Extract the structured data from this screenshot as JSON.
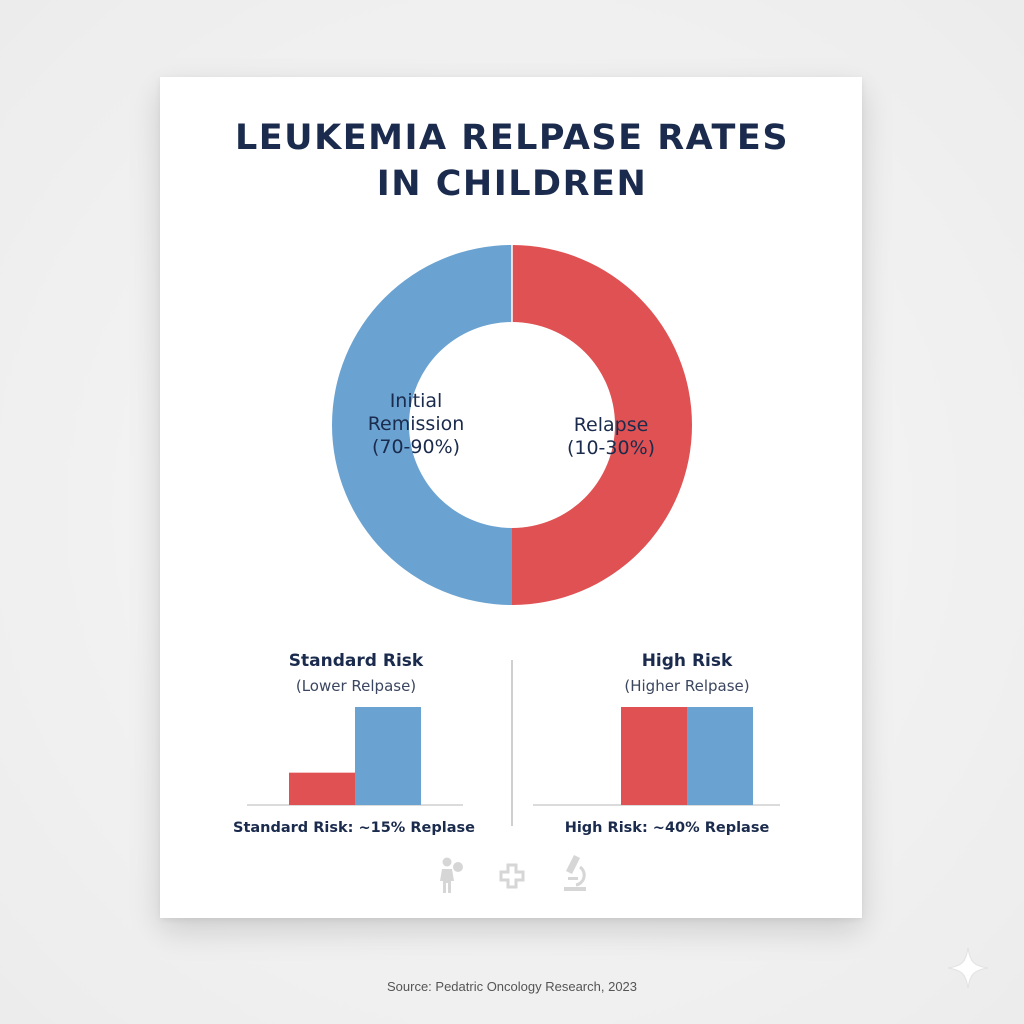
{
  "title_line1": "LEUKEMIA RELPASE RATES",
  "title_line2": "IN CHILDREN",
  "colors": {
    "remission": "#6aa2d1",
    "relapse": "#df5152",
    "text": "#1b2b4d"
  },
  "chart_data": [
    {
      "type": "pie",
      "donut": true,
      "slices": [
        {
          "label_line1": "Initial",
          "label_line2": "Remission",
          "label_line3": "(70-90%)",
          "value": 50,
          "color": "#6aa2d1"
        },
        {
          "label_line1": "Relapse",
          "label_line2": "(10-30%)",
          "value": 50,
          "color": "#df5152"
        }
      ]
    },
    {
      "type": "bar",
      "title": "Standard Risk",
      "subtitle": "(Lower Relpase)",
      "caption": "Standard Risk: ~15% Replase",
      "values": [
        33,
        100
      ],
      "colors": [
        "#df5152",
        "#6aa2d1"
      ],
      "ylim": [
        0,
        100
      ]
    },
    {
      "type": "bar",
      "title": "High Risk",
      "subtitle": "(Higher Relpase)",
      "caption": "High Risk: ~40% Replase",
      "values": [
        100,
        100
      ],
      "colors": [
        "#df5152",
        "#6aa2d1"
      ],
      "ylim": [
        0,
        100
      ]
    }
  ],
  "icons": [
    "child-with-balloon-icon",
    "medical-cross-icon",
    "microscope-icon",
    "sparkle-icon"
  ],
  "source": "Source: Pedatric Oncology Research, 2023"
}
